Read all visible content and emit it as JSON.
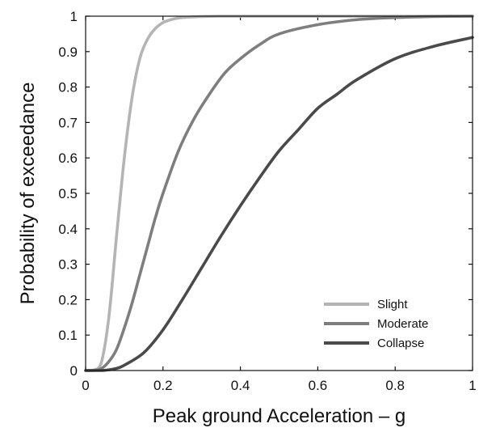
{
  "chart_data": {
    "type": "line",
    "title": "",
    "xlabel": "Peak ground Acceleration – g",
    "ylabel": "Probability of exceedance",
    "xlim": [
      0,
      1
    ],
    "ylim": [
      0,
      1
    ],
    "xticks": [
      0,
      0.2,
      0.4,
      0.6,
      0.8,
      1
    ],
    "xtick_labels": [
      "0",
      "0.2",
      "0.4",
      "0.6",
      "0.8",
      "1"
    ],
    "yticks": [
      0,
      0.1,
      0.2,
      0.3,
      0.4,
      0.5,
      0.6,
      0.7,
      0.8,
      0.9,
      1
    ],
    "ytick_labels": [
      "0",
      "0.1",
      "0.2",
      "0.3",
      "0.4",
      "0.5",
      "0.6",
      "0.7",
      "0.8",
      "0.9",
      "1"
    ],
    "grid": false,
    "legend_position": "bottom-right",
    "series": [
      {
        "name": "Slight",
        "color": "#b4b4b4",
        "x": [
          0.0,
          0.02,
          0.04,
          0.06,
          0.08,
          0.1,
          0.12,
          0.14,
          0.16,
          0.18,
          0.2,
          0.22,
          0.24,
          0.26,
          0.28,
          0.3,
          0.35,
          0.4,
          0.5,
          0.6,
          0.8,
          1.0
        ],
        "y": [
          0.0,
          0.001,
          0.02,
          0.15,
          0.38,
          0.6,
          0.77,
          0.88,
          0.935,
          0.965,
          0.982,
          0.99,
          0.995,
          0.997,
          0.998,
          0.999,
          1.0,
          1.0,
          1.0,
          1.0,
          1.0,
          1.0
        ]
      },
      {
        "name": "Moderate",
        "color": "#7e7e7e",
        "x": [
          0.0,
          0.02,
          0.04,
          0.06,
          0.08,
          0.1,
          0.12,
          0.14,
          0.16,
          0.18,
          0.2,
          0.24,
          0.28,
          0.32,
          0.36,
          0.4,
          0.45,
          0.5,
          0.6,
          0.7,
          0.8,
          0.9,
          1.0
        ],
        "y": [
          0.0,
          0.0,
          0.005,
          0.025,
          0.06,
          0.12,
          0.19,
          0.27,
          0.35,
          0.43,
          0.5,
          0.62,
          0.71,
          0.78,
          0.84,
          0.88,
          0.92,
          0.95,
          0.976,
          0.99,
          0.996,
          0.999,
          1.0
        ]
      },
      {
        "name": "Collapse",
        "color": "#4a4a4a",
        "x": [
          0.0,
          0.02,
          0.04,
          0.06,
          0.08,
          0.1,
          0.15,
          0.2,
          0.25,
          0.3,
          0.35,
          0.4,
          0.45,
          0.5,
          0.55,
          0.6,
          0.65,
          0.7,
          0.8,
          0.9,
          1.0
        ],
        "y": [
          0.0,
          0.0,
          0.0,
          0.002,
          0.006,
          0.015,
          0.05,
          0.115,
          0.2,
          0.29,
          0.38,
          0.465,
          0.545,
          0.62,
          0.68,
          0.74,
          0.78,
          0.82,
          0.88,
          0.915,
          0.94
        ]
      }
    ]
  }
}
